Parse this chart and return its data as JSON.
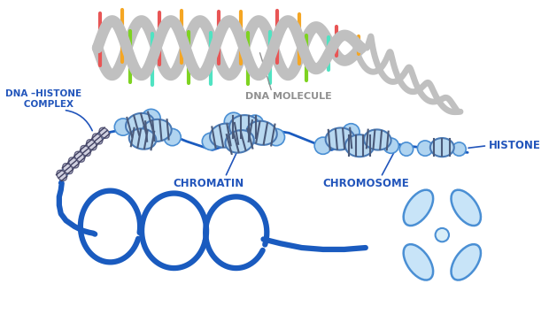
{
  "bg_color": "#ffffff",
  "helix_gray": "#c0c0c0",
  "helix_lw": 9,
  "rung_colors": [
    "#e85555",
    "#f5a623",
    "#7ed321",
    "#50e3c2",
    "#e85555",
    "#f5a623",
    "#7ed321",
    "#50e3c2"
  ],
  "blue_dark": "#1a5bbf",
  "blue_mid": "#4a8fd4",
  "blue_light": "#c8e4f8",
  "blue_light2": "#b0d4f0",
  "nuc_fill": "#b8d8f0",
  "nuc_edge": "#4a7ab5",
  "nuc_stripe": "#4a5a7a",
  "small_nuc_fill": "#d0d0e0",
  "small_nuc_edge": "#606080",
  "small_nuc_stripe": "#404060",
  "label_blue": "#2255bb",
  "label_gray": "#909090",
  "labels": {
    "dna_histone": "DNA –HISTONE\n   COMPLEX",
    "dna_molecule": "DNA MOLECULE",
    "histone": "HISTONE",
    "chromatin": "CHROMATIN",
    "chromosome": "CHROMOSOME"
  }
}
